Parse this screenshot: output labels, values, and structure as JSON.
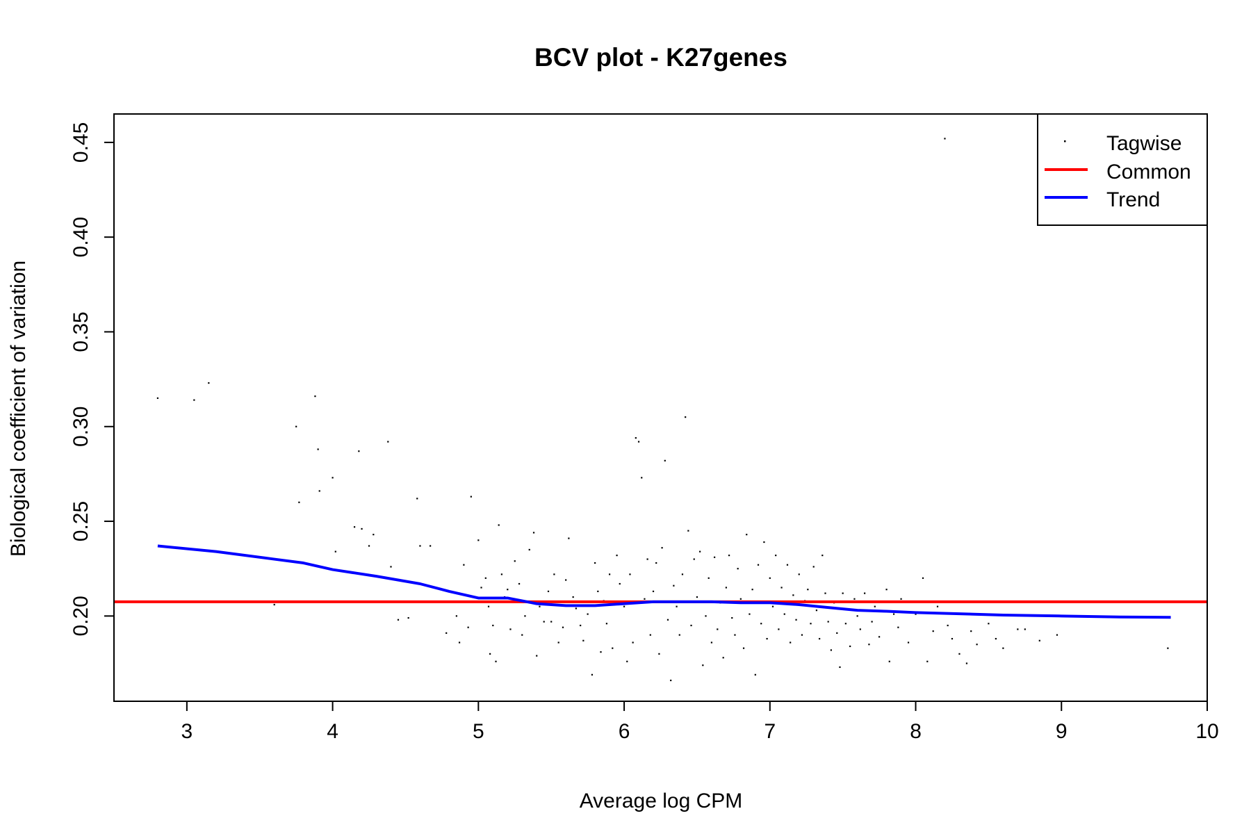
{
  "chart_data": {
    "type": "scatter",
    "title": "BCV plot - K27genes",
    "xlabel": "Average log CPM",
    "ylabel": "Biological coefficient of variation",
    "xlim": [
      2.5,
      10.0
    ],
    "ylim": [
      0.155,
      0.465
    ],
    "x_ticks": [
      3,
      4,
      5,
      6,
      7,
      8,
      9,
      10
    ],
    "y_ticks": [
      0.2,
      0.25,
      0.3,
      0.35,
      0.4,
      0.45
    ],
    "x_tick_labels": [
      "3",
      "4",
      "5",
      "6",
      "7",
      "8",
      "9",
      "10"
    ],
    "y_tick_labels": [
      "0.20",
      "0.25",
      "0.30",
      "0.35",
      "0.40",
      "0.45"
    ],
    "grid": false,
    "legend": {
      "position": "top-right",
      "entries": [
        {
          "label": "Tagwise",
          "kind": "point",
          "color": "#000000"
        },
        {
          "label": "Common",
          "kind": "line",
          "color": "#ff0000"
        },
        {
          "label": "Trend",
          "kind": "line",
          "color": "#0000ff"
        }
      ]
    },
    "common": {
      "name": "Common",
      "color": "#ff0000",
      "value": 0.2075
    },
    "trend": {
      "name": "Trend",
      "color": "#0000ff",
      "x": [
        2.8,
        3.2,
        3.6,
        3.8,
        4.0,
        4.3,
        4.6,
        4.8,
        5.0,
        5.2,
        5.4,
        5.6,
        5.8,
        6.0,
        6.2,
        6.4,
        6.6,
        6.8,
        7.0,
        7.2,
        7.4,
        7.6,
        7.8,
        8.0,
        8.3,
        8.6,
        9.0,
        9.4,
        9.75
      ],
      "y": [
        0.237,
        0.234,
        0.23,
        0.228,
        0.2245,
        0.221,
        0.217,
        0.213,
        0.2095,
        0.2095,
        0.2065,
        0.2055,
        0.2055,
        0.2065,
        0.2075,
        0.2075,
        0.2075,
        0.207,
        0.207,
        0.206,
        0.2045,
        0.203,
        0.2025,
        0.2018,
        0.2012,
        0.2005,
        0.2,
        0.1995,
        0.1993
      ]
    },
    "tagwise": {
      "name": "Tagwise",
      "color": "#000000",
      "points": [
        [
          2.8,
          0.315
        ],
        [
          3.05,
          0.314
        ],
        [
          3.15,
          0.323
        ],
        [
          3.6,
          0.206
        ],
        [
          3.75,
          0.3
        ],
        [
          3.77,
          0.26
        ],
        [
          3.88,
          0.316
        ],
        [
          3.9,
          0.288
        ],
        [
          3.91,
          0.266
        ],
        [
          4.0,
          0.273
        ],
        [
          4.02,
          0.234
        ],
        [
          4.15,
          0.247
        ],
        [
          4.18,
          0.287
        ],
        [
          4.2,
          0.246
        ],
        [
          4.25,
          0.237
        ],
        [
          4.28,
          0.243
        ],
        [
          4.38,
          0.292
        ],
        [
          4.4,
          0.226
        ],
        [
          4.45,
          0.198
        ],
        [
          4.52,
          0.199
        ],
        [
          4.58,
          0.262
        ],
        [
          4.6,
          0.237
        ],
        [
          4.67,
          0.237
        ],
        [
          4.7,
          0.215
        ],
        [
          4.78,
          0.191
        ],
        [
          4.85,
          0.2
        ],
        [
          4.87,
          0.186
        ],
        [
          4.9,
          0.227
        ],
        [
          4.93,
          0.194
        ],
        [
          4.95,
          0.263
        ],
        [
          5.0,
          0.24
        ],
        [
          5.02,
          0.215
        ],
        [
          5.05,
          0.22
        ],
        [
          5.07,
          0.205
        ],
        [
          5.08,
          0.18
        ],
        [
          5.1,
          0.195
        ],
        [
          5.12,
          0.176
        ],
        [
          5.14,
          0.248
        ],
        [
          5.16,
          0.222
        ],
        [
          5.18,
          0.21
        ],
        [
          5.2,
          0.214
        ],
        [
          5.22,
          0.193
        ],
        [
          5.25,
          0.229
        ],
        [
          5.28,
          0.217
        ],
        [
          5.3,
          0.19
        ],
        [
          5.32,
          0.2
        ],
        [
          5.35,
          0.235
        ],
        [
          5.38,
          0.244
        ],
        [
          5.4,
          0.179
        ],
        [
          5.42,
          0.205
        ],
        [
          5.45,
          0.197
        ],
        [
          5.48,
          0.213
        ],
        [
          5.5,
          0.197
        ],
        [
          5.52,
          0.222
        ],
        [
          5.55,
          0.186
        ],
        [
          5.58,
          0.194
        ],
        [
          5.6,
          0.219
        ],
        [
          5.62,
          0.241
        ],
        [
          5.65,
          0.21
        ],
        [
          5.67,
          0.204
        ],
        [
          5.7,
          0.195
        ],
        [
          5.72,
          0.187
        ],
        [
          5.75,
          0.201
        ],
        [
          5.78,
          0.169
        ],
        [
          5.8,
          0.228
        ],
        [
          5.82,
          0.213
        ],
        [
          5.84,
          0.181
        ],
        [
          5.86,
          0.208
        ],
        [
          5.88,
          0.196
        ],
        [
          5.9,
          0.222
        ],
        [
          5.92,
          0.183
        ],
        [
          5.95,
          0.232
        ],
        [
          5.97,
          0.217
        ],
        [
          6.0,
          0.205
        ],
        [
          6.02,
          0.176
        ],
        [
          6.04,
          0.222
        ],
        [
          6.06,
          0.186
        ],
        [
          6.08,
          0.294
        ],
        [
          6.1,
          0.292
        ],
        [
          6.12,
          0.273
        ],
        [
          6.14,
          0.209
        ],
        [
          6.16,
          0.23
        ],
        [
          6.18,
          0.19
        ],
        [
          6.2,
          0.213
        ],
        [
          6.22,
          0.228
        ],
        [
          6.24,
          0.18
        ],
        [
          6.26,
          0.236
        ],
        [
          6.28,
          0.282
        ],
        [
          6.3,
          0.198
        ],
        [
          6.32,
          0.166
        ],
        [
          6.34,
          0.216
        ],
        [
          6.36,
          0.205
        ],
        [
          6.38,
          0.19
        ],
        [
          6.4,
          0.222
        ],
        [
          6.42,
          0.305
        ],
        [
          6.44,
          0.245
        ],
        [
          6.46,
          0.195
        ],
        [
          6.48,
          0.23
        ],
        [
          6.5,
          0.21
        ],
        [
          6.52,
          0.234
        ],
        [
          6.54,
          0.174
        ],
        [
          6.56,
          0.2
        ],
        [
          6.58,
          0.22
        ],
        [
          6.6,
          0.186
        ],
        [
          6.62,
          0.231
        ],
        [
          6.64,
          0.193
        ],
        [
          6.66,
          0.207
        ],
        [
          6.68,
          0.178
        ],
        [
          6.7,
          0.215
        ],
        [
          6.72,
          0.232
        ],
        [
          6.74,
          0.199
        ],
        [
          6.76,
          0.19
        ],
        [
          6.78,
          0.225
        ],
        [
          6.8,
          0.209
        ],
        [
          6.82,
          0.183
        ],
        [
          6.84,
          0.243
        ],
        [
          6.86,
          0.201
        ],
        [
          6.88,
          0.214
        ],
        [
          6.9,
          0.169
        ],
        [
          6.92,
          0.227
        ],
        [
          6.94,
          0.196
        ],
        [
          6.96,
          0.239
        ],
        [
          6.98,
          0.188
        ],
        [
          7.0,
          0.22
        ],
        [
          7.02,
          0.205
        ],
        [
          7.04,
          0.232
        ],
        [
          7.06,
          0.193
        ],
        [
          7.08,
          0.215
        ],
        [
          7.1,
          0.201
        ],
        [
          7.12,
          0.227
        ],
        [
          7.14,
          0.186
        ],
        [
          7.16,
          0.211
        ],
        [
          7.18,
          0.198
        ],
        [
          7.2,
          0.222
        ],
        [
          7.22,
          0.19
        ],
        [
          7.24,
          0.208
        ],
        [
          7.26,
          0.214
        ],
        [
          7.28,
          0.196
        ],
        [
          7.3,
          0.226
        ],
        [
          7.32,
          0.203
        ],
        [
          7.34,
          0.188
        ],
        [
          7.36,
          0.232
        ],
        [
          7.38,
          0.212
        ],
        [
          7.4,
          0.197
        ],
        [
          7.42,
          0.182
        ],
        [
          7.44,
          0.207
        ],
        [
          7.46,
          0.191
        ],
        [
          7.48,
          0.173
        ],
        [
          7.5,
          0.212
        ],
        [
          7.52,
          0.196
        ],
        [
          7.55,
          0.184
        ],
        [
          7.58,
          0.209
        ],
        [
          7.6,
          0.2
        ],
        [
          7.62,
          0.193
        ],
        [
          7.65,
          0.212
        ],
        [
          7.68,
          0.185
        ],
        [
          7.7,
          0.197
        ],
        [
          7.72,
          0.205
        ],
        [
          7.75,
          0.189
        ],
        [
          7.8,
          0.214
        ],
        [
          7.82,
          0.176
        ],
        [
          7.85,
          0.201
        ],
        [
          7.88,
          0.194
        ],
        [
          7.9,
          0.209
        ],
        [
          7.95,
          0.186
        ],
        [
          8.0,
          0.201
        ],
        [
          8.05,
          0.22
        ],
        [
          8.08,
          0.176
        ],
        [
          8.12,
          0.192
        ],
        [
          8.15,
          0.205
        ],
        [
          8.2,
          0.452
        ],
        [
          8.22,
          0.195
        ],
        [
          8.25,
          0.188
        ],
        [
          8.28,
          0.201
        ],
        [
          8.3,
          0.18
        ],
        [
          8.35,
          0.175
        ],
        [
          8.38,
          0.192
        ],
        [
          8.42,
          0.185
        ],
        [
          8.5,
          0.196
        ],
        [
          8.55,
          0.188
        ],
        [
          8.6,
          0.183
        ],
        [
          8.7,
          0.193
        ],
        [
          8.75,
          0.193
        ],
        [
          8.85,
          0.187
        ],
        [
          8.97,
          0.19
        ],
        [
          9.73,
          0.183
        ]
      ]
    }
  }
}
